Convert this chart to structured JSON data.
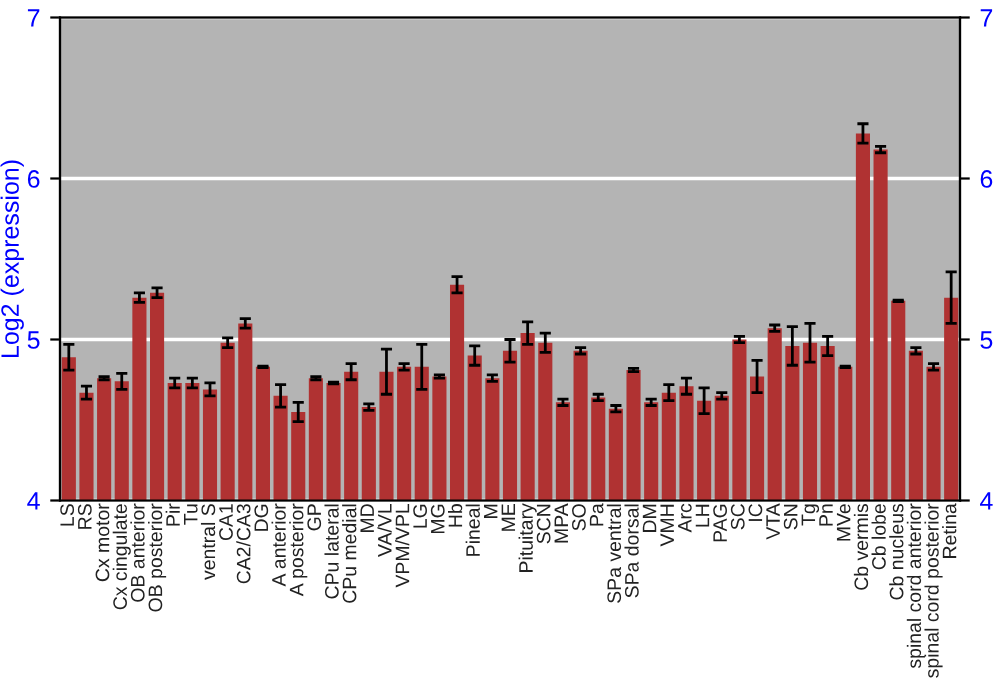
{
  "chart_data": {
    "type": "bar",
    "ylabel": "Log2 (expression)",
    "categories": [
      "LS",
      "RS",
      "Cx motor",
      "Cx cingulate",
      "OB anterior",
      "OB posterior",
      "Pir",
      "Tu",
      "ventral S",
      "CA1",
      "CA2/CA3",
      "DG",
      "A anterior",
      "A posterior",
      "GP",
      "CPu lateral",
      "CPu medial",
      "MD",
      "VA/VL",
      "VPM/VPL",
      "LG",
      "MG",
      "Hb",
      "Pineal",
      "M",
      "ME",
      "Pituitary",
      "SCN",
      "MPA",
      "SO",
      "Pa",
      "SPa ventral",
      "SPa dorsal",
      "DM",
      "VMH",
      "Arc",
      "LH",
      "PAG",
      "SC",
      "IC",
      "VTA",
      "SN",
      "Tg",
      "Pn",
      "MVe",
      "Cb vermis",
      "Cb lobe",
      "Cb nucleus",
      "spinal cord anterior",
      "spinal cord posterior",
      "Retina"
    ],
    "series": [
      {
        "color": "#b03232",
        "values": [
          4.89,
          4.67,
          4.76,
          4.74,
          5.26,
          5.29,
          4.73,
          4.73,
          4.69,
          4.98,
          5.1,
          4.83,
          4.65,
          4.55,
          4.76,
          4.73,
          4.8,
          4.58,
          4.8,
          4.83,
          4.83,
          4.77,
          5.34,
          4.9,
          4.76,
          4.93,
          5.04,
          4.98,
          4.61,
          4.93,
          4.64,
          4.57,
          4.81,
          4.61,
          4.67,
          4.71,
          4.62,
          4.65,
          5.0,
          4.77,
          5.07,
          4.96,
          4.98,
          4.96,
          4.83,
          6.28,
          6.18,
          5.24,
          4.93,
          4.83,
          5.26
        ],
        "errors": [
          0.08,
          0.04,
          0.01,
          0.05,
          0.03,
          0.03,
          0.03,
          0.03,
          0.04,
          0.03,
          0.03,
          0.005,
          0.07,
          0.06,
          0.01,
          0.005,
          0.05,
          0.02,
          0.14,
          0.02,
          0.14,
          0.01,
          0.05,
          0.06,
          0.02,
          0.07,
          0.07,
          0.06,
          0.02,
          0.02,
          0.02,
          0.02,
          0.01,
          0.02,
          0.05,
          0.05,
          0.08,
          0.02,
          0.02,
          0.1,
          0.02,
          0.12,
          0.12,
          0.06,
          0.005,
          0.06,
          0.02,
          0.005,
          0.02,
          0.02,
          0.16
        ]
      }
    ],
    "ylim": [
      4,
      7
    ],
    "yticks": [
      4,
      5,
      6,
      7
    ],
    "y2lim": [
      4,
      7
    ],
    "y2ticks": [
      4,
      5,
      6,
      7
    ],
    "grid": "y"
  }
}
